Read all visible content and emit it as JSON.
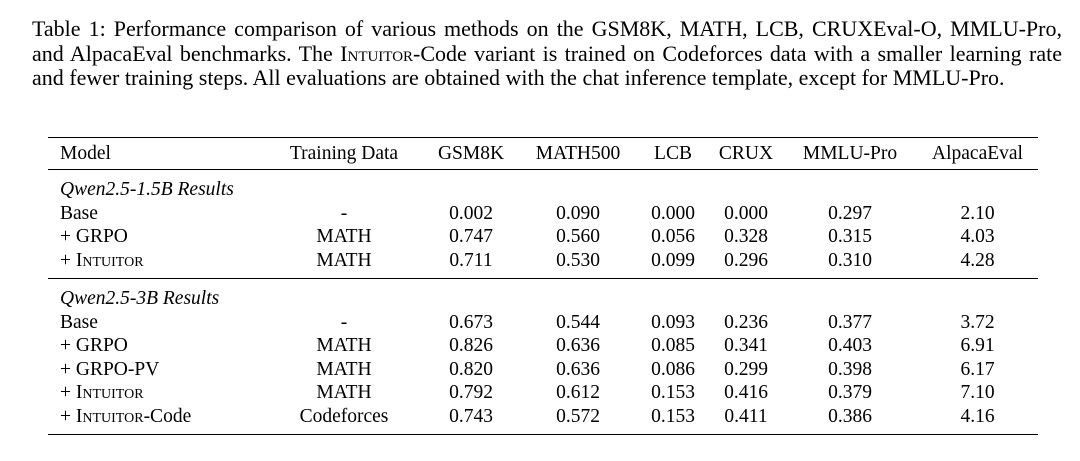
{
  "caption": {
    "label": "Table 1:",
    "text_part1": "Performance comparison of various methods on the GSM8K, MATH, LCB, CRUXEval-O, MMLU-Pro, and AlpacaEval benchmarks. The ",
    "sc_word": "Intuitor",
    "text_part2": "-Code variant is trained on Codeforces data with a smaller learning rate and fewer training steps. All evaluations are obtained with the chat inference template, except for MMLU-Pro."
  },
  "table": {
    "headers": [
      "Model",
      "Training Data",
      "GSM8K",
      "MATH500",
      "LCB",
      "CRUX",
      "MMLU-Pro",
      "AlpacaEval"
    ],
    "groups": [
      {
        "title": "Qwen2.5-1.5B Results",
        "rows": [
          {
            "prefix": "Base",
            "sc": "",
            "suffix": "",
            "cells": [
              "-",
              "0.002",
              "0.090",
              "0.000",
              "0.000",
              "0.297",
              "2.10"
            ]
          },
          {
            "prefix": "+ GRPO",
            "sc": "",
            "suffix": "",
            "cells": [
              "MATH",
              "0.747",
              "0.560",
              "0.056",
              "0.328",
              "0.315",
              "4.03"
            ]
          },
          {
            "prefix": "+ ",
            "sc": "Intuitor",
            "suffix": "",
            "cells": [
              "MATH",
              "0.711",
              "0.530",
              "0.099",
              "0.296",
              "0.310",
              "4.28"
            ]
          }
        ]
      },
      {
        "title": "Qwen2.5-3B Results",
        "rows": [
          {
            "prefix": "Base",
            "sc": "",
            "suffix": "",
            "cells": [
              "-",
              "0.673",
              "0.544",
              "0.093",
              "0.236",
              "0.377",
              "3.72"
            ]
          },
          {
            "prefix": "+ GRPO",
            "sc": "",
            "suffix": "",
            "cells": [
              "MATH",
              "0.826",
              "0.636",
              "0.085",
              "0.341",
              "0.403",
              "6.91"
            ]
          },
          {
            "prefix": "+ GRPO-PV",
            "sc": "",
            "suffix": "",
            "cells": [
              "MATH",
              "0.820",
              "0.636",
              "0.086",
              "0.299",
              "0.398",
              "6.17"
            ]
          },
          {
            "prefix": "+ ",
            "sc": "Intuitor",
            "suffix": "",
            "cells": [
              "MATH",
              "0.792",
              "0.612",
              "0.153",
              "0.416",
              "0.379",
              "7.10"
            ]
          },
          {
            "prefix": "+ ",
            "sc": "Intuitor",
            "suffix": "-Code",
            "cells": [
              "Codeforces",
              "0.743",
              "0.572",
              "0.153",
              "0.411",
              "0.386",
              "4.16"
            ]
          }
        ]
      }
    ]
  }
}
